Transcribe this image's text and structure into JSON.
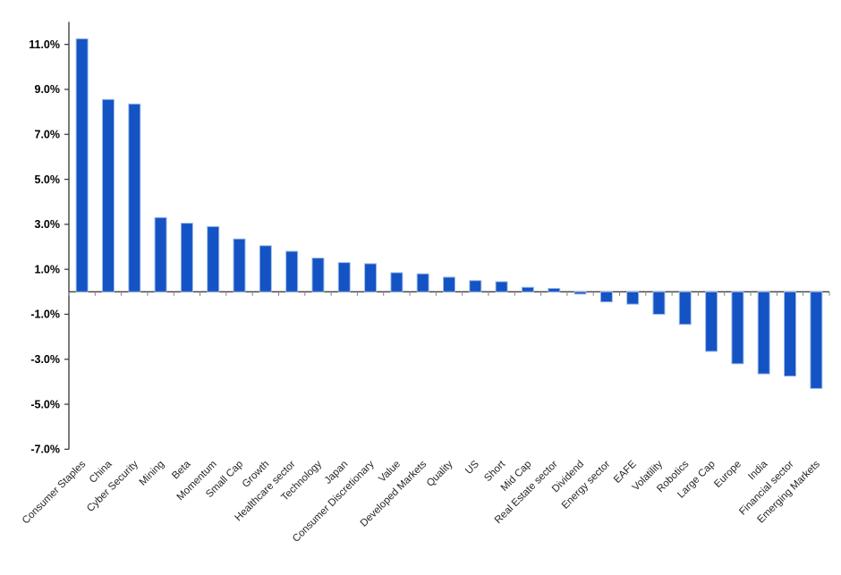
{
  "chart_data": {
    "type": "bar",
    "title": "",
    "xlabel": "",
    "ylabel": "",
    "legend": "none",
    "grid": "off",
    "background_color": "#ffffff",
    "bar_fill_color": "#1353c4",
    "bar_edge_color": "#9db9ea",
    "axis_line_color": "#404040",
    "category_tick_color": "#808080",
    "ytick_label_color": "#000000",
    "xtick_label_color": "#262626",
    "ylim": [
      -7,
      12
    ],
    "ytick_values": [
      11,
      9,
      7,
      5,
      3,
      1,
      -1,
      -3,
      -5,
      -7
    ],
    "ytick_labels": [
      "11.0%",
      "9.0%",
      "7.0%",
      "5.0%",
      "3.0%",
      "1.0%",
      "-1.0%",
      "-3.0%",
      "-5.0%",
      "-7.0%"
    ],
    "categories": [
      "Consumer Staples",
      "China",
      "Cyber Security",
      "Mining",
      "Beta",
      "Momentum",
      "Small Cap",
      "Growth",
      "Healthcare sector",
      "Technology",
      "Japan",
      "Consumer Discretionary",
      "Value",
      "Developed Markets",
      "Quality",
      "US",
      "Short",
      "Mid Cap",
      "Real Estate sector",
      "Dividend",
      "Energy sector",
      "EAFE",
      "Volatility",
      "Robotics",
      "Large Cap",
      "Europe",
      "India",
      "Financial sector",
      "Emerging Markets"
    ],
    "values": [
      11.25,
      8.55,
      8.35,
      3.3,
      3.05,
      2.9,
      2.35,
      2.05,
      1.8,
      1.5,
      1.3,
      1.25,
      0.85,
      0.8,
      0.65,
      0.5,
      0.45,
      0.2,
      0.15,
      -0.1,
      -0.45,
      -0.55,
      -1.0,
      -1.45,
      -2.65,
      -3.2,
      -3.65,
      -3.75,
      -4.3
    ],
    "value_unit": "%"
  }
}
